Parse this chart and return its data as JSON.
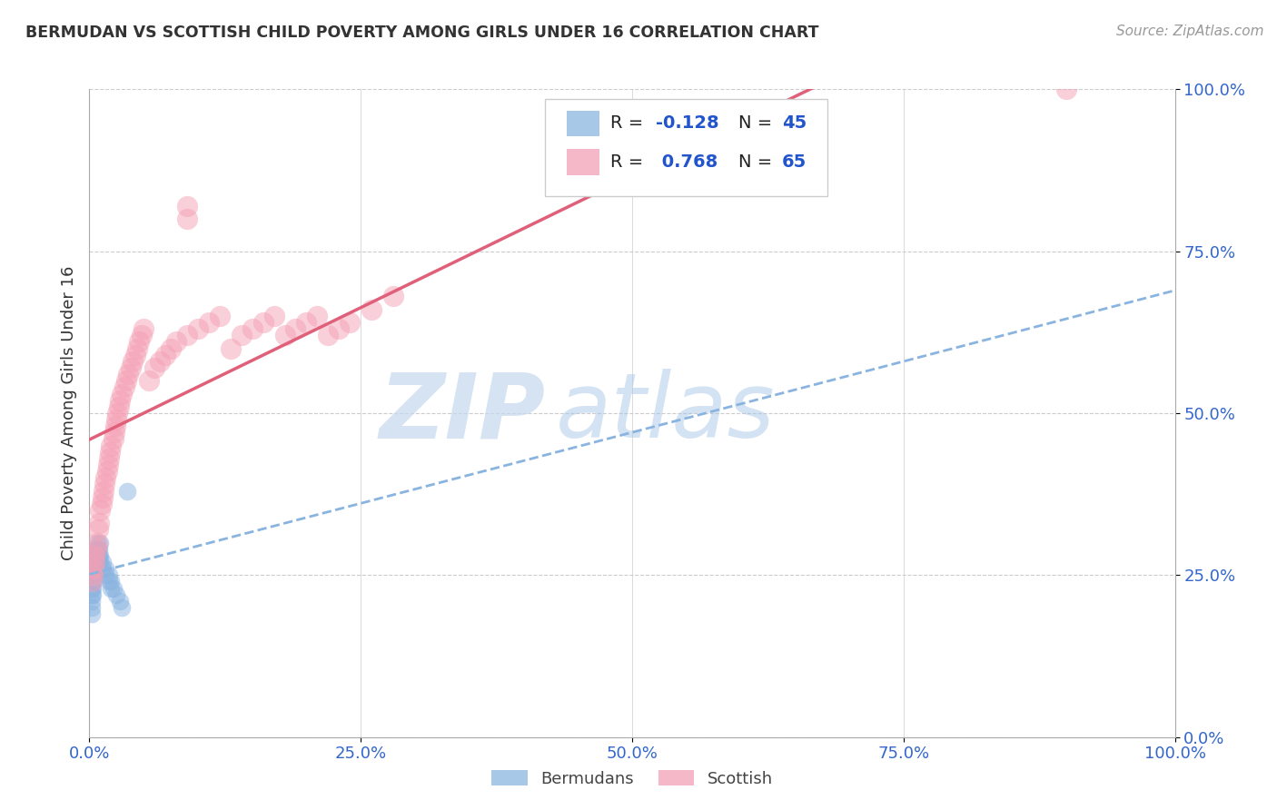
{
  "title": "BERMUDAN VS SCOTTISH CHILD POVERTY AMONG GIRLS UNDER 16 CORRELATION CHART",
  "source_text": "Source: ZipAtlas.com",
  "ylabel": "Child Poverty Among Girls Under 16",
  "xlim": [
    0.0,
    1.0
  ],
  "ylim": [
    0.0,
    1.0
  ],
  "xticks": [
    0.0,
    0.25,
    0.5,
    0.75,
    1.0
  ],
  "yticks": [
    0.0,
    0.25,
    0.5,
    0.75,
    1.0
  ],
  "xtick_labels": [
    "0.0%",
    "25.0%",
    "50.0%",
    "75.0%",
    "100.0%"
  ],
  "ytick_labels_right": [
    "0.0%",
    "25.0%",
    "50.0%",
    "75.0%",
    "100.0%"
  ],
  "bermudan_color": "#8ab4e0",
  "scottish_color": "#f5a0b5",
  "bermudan_line_color": "#8ab4e0",
  "scottish_line_color": "#e0607a",
  "bermudan_R": -0.128,
  "bermudan_N": 45,
  "scottish_R": 0.768,
  "scottish_N": 65,
  "watermark_ZIP": "ZIP",
  "watermark_atlas": "atlas",
  "background_color": "#ffffff",
  "bermudan_points_x": [
    0.002,
    0.002,
    0.002,
    0.002,
    0.002,
    0.003,
    0.003,
    0.003,
    0.003,
    0.003,
    0.004,
    0.004,
    0.004,
    0.004,
    0.005,
    0.005,
    0.005,
    0.005,
    0.006,
    0.006,
    0.006,
    0.007,
    0.007,
    0.007,
    0.008,
    0.008,
    0.008,
    0.009,
    0.009,
    0.01,
    0.01,
    0.01,
    0.012,
    0.012,
    0.015,
    0.015,
    0.018,
    0.018,
    0.02,
    0.02,
    0.022,
    0.025,
    0.028,
    0.03,
    0.035
  ],
  "bermudan_points_y": [
    0.22,
    0.21,
    0.2,
    0.19,
    0.23,
    0.26,
    0.25,
    0.24,
    0.23,
    0.22,
    0.27,
    0.26,
    0.25,
    0.24,
    0.28,
    0.27,
    0.26,
    0.25,
    0.29,
    0.27,
    0.26,
    0.3,
    0.28,
    0.27,
    0.29,
    0.28,
    0.27,
    0.29,
    0.28,
    0.3,
    0.28,
    0.27,
    0.27,
    0.26,
    0.26,
    0.25,
    0.25,
    0.24,
    0.24,
    0.23,
    0.23,
    0.22,
    0.21,
    0.2,
    0.38
  ],
  "scottish_points_x": [
    0.002,
    0.003,
    0.004,
    0.005,
    0.005,
    0.006,
    0.007,
    0.008,
    0.009,
    0.01,
    0.011,
    0.012,
    0.013,
    0.014,
    0.015,
    0.016,
    0.017,
    0.018,
    0.019,
    0.02,
    0.022,
    0.023,
    0.024,
    0.025,
    0.026,
    0.027,
    0.028,
    0.03,
    0.032,
    0.034,
    0.036,
    0.038,
    0.04,
    0.042,
    0.044,
    0.046,
    0.048,
    0.05,
    0.055,
    0.06,
    0.065,
    0.07,
    0.075,
    0.08,
    0.09,
    0.1,
    0.11,
    0.12,
    0.13,
    0.14,
    0.15,
    0.16,
    0.17,
    0.18,
    0.19,
    0.2,
    0.21,
    0.22,
    0.23,
    0.24,
    0.26,
    0.28,
    0.09,
    0.09,
    0.9
  ],
  "scottish_points_y": [
    0.24,
    0.25,
    0.26,
    0.27,
    0.28,
    0.29,
    0.3,
    0.32,
    0.33,
    0.35,
    0.36,
    0.37,
    0.38,
    0.39,
    0.4,
    0.41,
    0.42,
    0.43,
    0.44,
    0.45,
    0.46,
    0.47,
    0.48,
    0.49,
    0.5,
    0.51,
    0.52,
    0.53,
    0.54,
    0.55,
    0.56,
    0.57,
    0.58,
    0.59,
    0.6,
    0.61,
    0.62,
    0.63,
    0.55,
    0.57,
    0.58,
    0.59,
    0.6,
    0.61,
    0.62,
    0.63,
    0.64,
    0.65,
    0.6,
    0.62,
    0.63,
    0.64,
    0.65,
    0.62,
    0.63,
    0.64,
    0.65,
    0.62,
    0.63,
    0.64,
    0.66,
    0.68,
    0.8,
    0.82,
    1.0
  ]
}
